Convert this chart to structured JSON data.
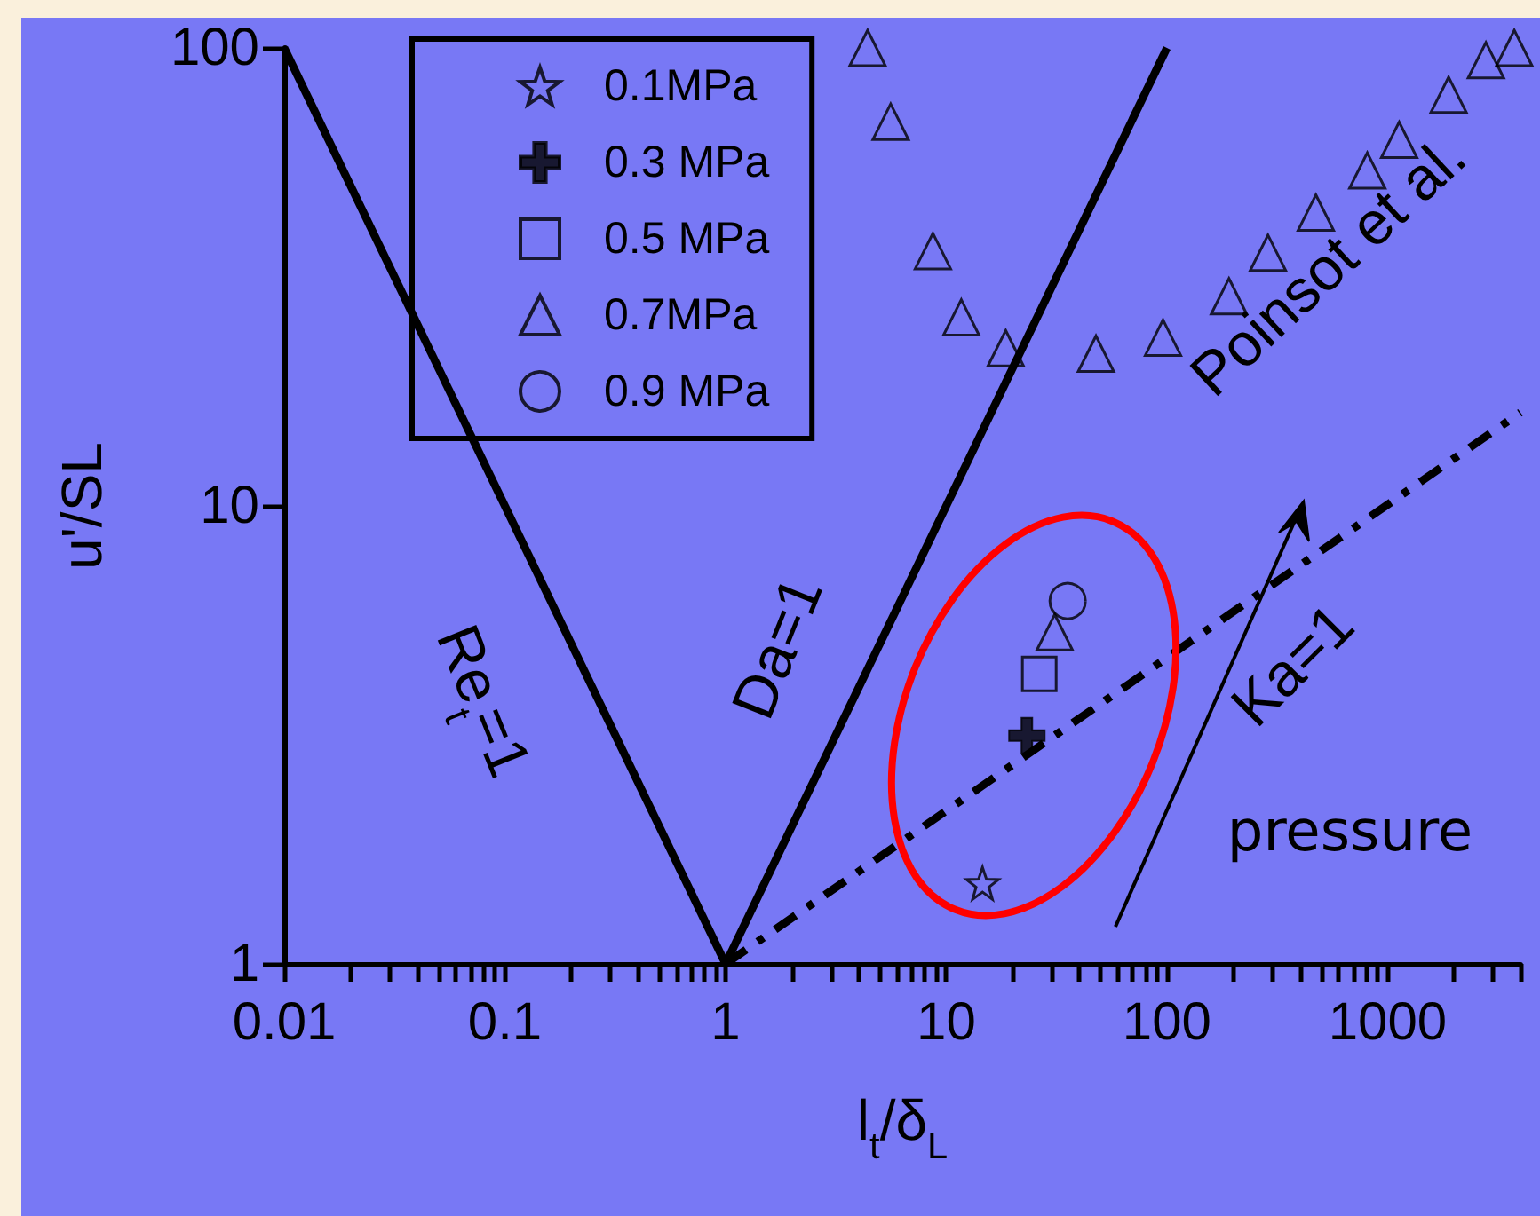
{
  "chart_data": {
    "type": "scatter",
    "xlabel": "l$_{t}$/δ$_{L}$",
    "ylabel": "u'/SL",
    "log": "xy",
    "grid": false,
    "legend": "top left",
    "xlim": [
      0.01,
      4000
    ],
    "ylim": [
      1,
      100
    ],
    "xticks": [
      0.01,
      {
        "value": 0.02,
        "label": null
      },
      {
        "value": 0.03,
        "label": null
      },
      {
        "value": 0.04,
        "label": null
      },
      {
        "value": 0.05,
        "label": null
      },
      {
        "value": 0.06,
        "label": null
      },
      {
        "value": 0.07,
        "label": null
      },
      {
        "value": 0.08,
        "label": null
      },
      {
        "value": 0.09,
        "label": null
      },
      0.1,
      {
        "value": 0.2,
        "label": null
      },
      {
        "value": 0.3,
        "label": null
      },
      {
        "value": 0.4,
        "label": null
      },
      {
        "value": 0.5,
        "label": null
      },
      {
        "value": 0.6,
        "label": null
      },
      {
        "value": 0.7,
        "label": null
      },
      {
        "value": 0.8,
        "label": null
      },
      {
        "value": 0.9,
        "label": null
      },
      1,
      {
        "value": 2,
        "label": null
      },
      {
        "value": 3,
        "label": null
      },
      {
        "value": 4,
        "label": null
      },
      {
        "value": 5,
        "label": null
      },
      {
        "value": 6,
        "label": null
      },
      {
        "value": 7,
        "label": null
      },
      {
        "value": 8,
        "label": null
      },
      {
        "value": 9,
        "label": null
      },
      10,
      {
        "value": 20,
        "label": null
      },
      {
        "value": 30,
        "label": null
      },
      {
        "value": 40,
        "label": null
      },
      {
        "value": 50,
        "label": null
      },
      {
        "value": 60,
        "label": null
      },
      {
        "value": 70,
        "label": null
      },
      {
        "value": 80,
        "label": null
      },
      {
        "value": 90,
        "label": null
      },
      100,
      {
        "value": 200,
        "label": null
      },
      {
        "value": 300,
        "label": null
      },
      {
        "value": 400,
        "label": null
      },
      {
        "value": 500,
        "label": null
      },
      {
        "value": 600,
        "label": null
      },
      {
        "value": 700,
        "label": null
      },
      {
        "value": 800,
        "label": null
      },
      {
        "value": 900,
        "label": null
      },
      1000,
      {
        "value": 2000,
        "label": null
      },
      {
        "value": 3000,
        "label": null
      },
      {
        "value": 4000,
        "label": null
      }
    ],
    "yticks": [
      1,
      10,
      100
    ],
    "annotations": [
      "pressure"
    ],
    "series": [
      {
        "name": "0.1MPa",
        "marker": "star",
        "color": "#000000",
        "x": [
          14.6
        ],
        "values": [
          1.5
        ]
      },
      {
        "name": "0.3 MPa",
        "marker": "cross",
        "color": "#000000",
        "x": [
          23.2
        ],
        "values": [
          3.15
        ]
      },
      {
        "name": "0.5 MPa",
        "marker": "square",
        "color": "#000000",
        "x": [
          26.4
        ],
        "values": [
          4.3
        ]
      },
      {
        "name": "0.7MPa",
        "marker": "triangle",
        "color": "#000000",
        "x": [
          31
        ],
        "values": [
          5.3
        ]
      },
      {
        "name": "0.9 MPa",
        "marker": "circle",
        "color": "#000000",
        "x": [
          35.5
        ],
        "values": [
          6.2
        ]
      },
      {
        "name": "Poinsot et al.",
        "marker": "triangle",
        "color": "#000000",
        "x": [
          4.4,
          5.6,
          8.7,
          11.7,
          18.6,
          47.7,
          96,
          191,
          287,
          473,
          809,
          1128,
          1890,
          2790,
          3750
        ],
        "values": [
          100,
          69,
          36,
          25.8,
          22.1,
          21.5,
          23.3,
          28.7,
          35.7,
          43.7,
          54,
          63,
          79,
          94,
          100
        ]
      },
      {
        "name": "Re$_{t}$=1",
        "type": "line",
        "marker": "none",
        "line_style": "solid",
        "color": "#000000",
        "x": [
          0.01,
          1
        ],
        "values": [
          100,
          1
        ]
      },
      {
        "name": "Da=1",
        "type": "line",
        "marker": "none",
        "line_style": "solid",
        "color": "#000000",
        "x": [
          1,
          100
        ],
        "values": [
          1,
          100
        ]
      },
      {
        "name": "Ka=1",
        "type": "line",
        "marker": "none",
        "line_style": "dashed",
        "color": "#000000",
        "x": [
          1,
          4000
        ],
        "values": [
          1,
          16
        ]
      }
    ]
  }
}
